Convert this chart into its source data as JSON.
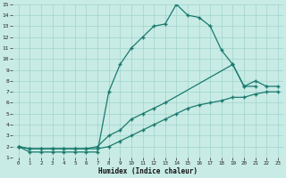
{
  "xlabel": "Humidex (Indice chaleur)",
  "bg_color": "#c8ebe5",
  "grid_color": "#a0d4cc",
  "line_color": "#1a7a6e",
  "xlim": [
    -0.5,
    23.5
  ],
  "ylim": [
    1,
    15
  ],
  "xticks": [
    0,
    1,
    2,
    3,
    4,
    5,
    6,
    7,
    8,
    9,
    10,
    11,
    12,
    13,
    14,
    15,
    16,
    17,
    18,
    19,
    20,
    21,
    22,
    23
  ],
  "yticks": [
    1,
    2,
    3,
    4,
    5,
    6,
    7,
    8,
    9,
    10,
    11,
    12,
    13,
    14,
    15
  ],
  "curve_a_x": [
    0,
    1,
    2,
    3,
    4,
    5,
    6,
    7,
    8,
    9,
    10,
    11,
    12,
    13,
    14,
    15,
    16,
    17,
    18,
    19,
    20,
    21
  ],
  "curve_a_y": [
    2,
    1.5,
    1.5,
    1.5,
    1.5,
    1.5,
    1.5,
    1.5,
    7,
    9.5,
    11,
    12,
    13,
    13.2,
    15,
    14,
    13.8,
    13,
    10.8,
    9.5,
    7.5,
    7.5
  ],
  "curve_b_x": [
    0,
    1,
    2,
    3,
    4,
    5,
    6,
    7,
    8,
    9,
    10,
    11,
    12,
    13,
    19,
    20,
    21,
    22,
    23
  ],
  "curve_b_y": [
    2,
    1.8,
    1.8,
    1.8,
    1.8,
    1.8,
    1.8,
    2,
    3,
    3.5,
    4.5,
    5,
    5.5,
    6,
    9.5,
    7.5,
    8,
    7.5,
    7.5
  ],
  "curve_c_x": [
    0,
    1,
    2,
    3,
    4,
    5,
    6,
    7,
    8,
    9,
    10,
    11,
    12,
    13,
    14,
    15,
    16,
    17,
    18,
    19,
    20,
    21,
    22,
    23
  ],
  "curve_c_y": [
    2,
    1.8,
    1.8,
    1.8,
    1.8,
    1.8,
    1.8,
    1.8,
    2,
    2.5,
    3,
    3.5,
    4,
    4.5,
    5,
    5.5,
    5.8,
    6,
    6.2,
    6.5,
    6.5,
    6.8,
    7,
    7
  ]
}
